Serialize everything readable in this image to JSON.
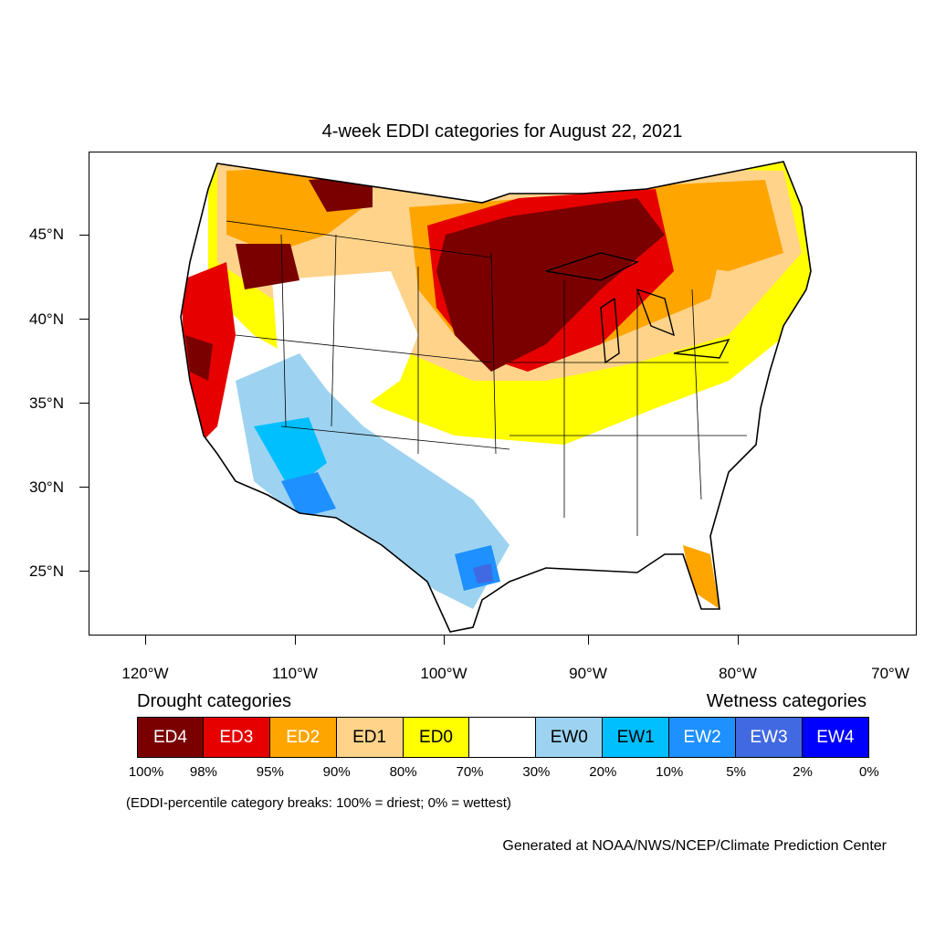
{
  "title": "4-week EDDI categories for August 22, 2021",
  "lat_labels": [
    "45°N",
    "40°N",
    "35°N",
    "30°N",
    "25°N"
  ],
  "lon_labels": [
    "120°W",
    "110°W",
    "100°W",
    "90°W",
    "80°W",
    "70°W"
  ],
  "legend": {
    "drought_heading": "Drought categories",
    "wetness_heading": "Wetness categories",
    "categories": [
      {
        "label": "ED4",
        "color": "#7a0000",
        "text_color": "#ffffff"
      },
      {
        "label": "ED3",
        "color": "#e60000",
        "text_color": "#ffffff"
      },
      {
        "label": "ED2",
        "color": "#ffa500",
        "text_color": "#ffffff"
      },
      {
        "label": "ED1",
        "color": "#ffd38a",
        "text_color": "#000000"
      },
      {
        "label": "ED0",
        "color": "#ffff00",
        "text_color": "#000000"
      },
      {
        "label": "",
        "color": "#ffffff",
        "text_color": "#000000"
      },
      {
        "label": "EW0",
        "color": "#9dd3f0",
        "text_color": "#000000"
      },
      {
        "label": "EW1",
        "color": "#00bfff",
        "text_color": "#000000"
      },
      {
        "label": "EW2",
        "color": "#1e90ff",
        "text_color": "#ffffff"
      },
      {
        "label": "EW3",
        "color": "#4169e1",
        "text_color": "#ffffff"
      },
      {
        "label": "EW4",
        "color": "#0000ff",
        "text_color": "#ffffff"
      }
    ],
    "breaks": [
      "100%",
      "98%",
      "95%",
      "90%",
      "80%",
      "70%",
      "30%",
      "20%",
      "10%",
      "5%",
      "2%",
      "0%"
    ]
  },
  "note": "(EDDI-percentile category breaks: 100% = driest; 0% = wettest)",
  "credit": "Generated at NOAA/NWS/NCEP/Climate Prediction Center"
}
